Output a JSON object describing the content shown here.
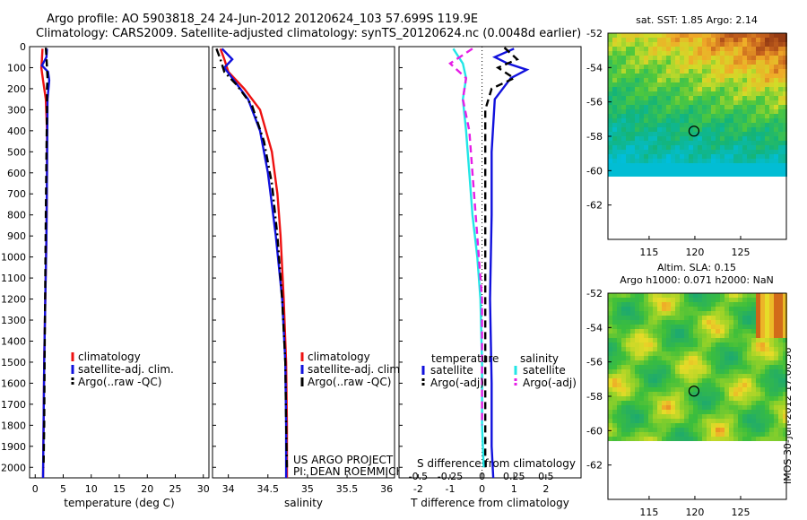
{
  "header": {
    "line1": "Argo profile: AO 5903818_24 24-Jun-2012 20120624_103 57.699S 119.9E",
    "line2": "Climatology: CARS2009. Satellite-adjusted climatology: synTS_20120624.nc (0.0048d earlier)"
  },
  "stamp": "IMOS 30-Jun-2012 17:00:56",
  "colors": {
    "red": "#ee1111",
    "blue": "#1111dd",
    "black": "#000000",
    "cyan": "#22e6e6",
    "magenta": "#e61ee6"
  },
  "chart_data": [
    {
      "type": "line",
      "xlabel": "temperature (deg C)",
      "ylim": [
        2050,
        0
      ],
      "xlim": [
        -1,
        31
      ],
      "xticks": [
        "0",
        "5",
        "10",
        "15",
        "20",
        "25",
        "30"
      ],
      "yticks": [
        "0",
        "100",
        "200",
        "300",
        "400",
        "500",
        "600",
        "700",
        "800",
        "900",
        "1000",
        "1100",
        "1200",
        "1300",
        "1400",
        "1500",
        "1600",
        "1700",
        "1800",
        "1900",
        "2000"
      ],
      "legend": [
        "climatology",
        "satellite-adj. clim.",
        "Argo(..raw -QC)"
      ],
      "series": [
        {
          "name": "climatology",
          "color": "red",
          "dash": "solid",
          "x": [
            1.3,
            1.2,
            1.1,
            1.4,
            1.9,
            2.1,
            2.1,
            2.0,
            1.8,
            1.6,
            1.5,
            1.4
          ],
          "y": [
            10,
            60,
            100,
            160,
            250,
            400,
            600,
            900,
            1200,
            1500,
            1800,
            2050
          ]
        },
        {
          "name": "satellite-adj. clim.",
          "color": "blue",
          "dash": "solid",
          "x": [
            2.1,
            2.0,
            1.2,
            2.3,
            2.5,
            2.2,
            2.1,
            2.0,
            1.8,
            1.6,
            1.5,
            1.4
          ],
          "y": [
            10,
            50,
            90,
            120,
            160,
            250,
            600,
            900,
            1200,
            1500,
            1800,
            2050
          ]
        },
        {
          "name": "Argo(..raw -QC)",
          "color": "black",
          "dash": "dash",
          "x": [
            1.9,
            2.0,
            2.1,
            2.2,
            2.1,
            2.1,
            2.0,
            1.9,
            1.8,
            1.7,
            1.6,
            1.5
          ],
          "y": [
            5,
            50,
            100,
            150,
            200,
            300,
            500,
            800,
            1100,
            1400,
            1800,
            2000
          ]
        }
      ]
    },
    {
      "type": "line",
      "xlabel": "salinity",
      "ylim": [
        2050,
        0
      ],
      "xlim": [
        33.8,
        36.1
      ],
      "xticks": [
        "34",
        "34.5",
        "35",
        "35.5",
        "36"
      ],
      "legend": [
        "climatology",
        "satellite-adj. clim.",
        "Argo(..raw -QC)"
      ],
      "annotation": [
        "US ARGO PROJECT",
        "PI: DEAN ROEMMICH"
      ],
      "series": [
        {
          "name": "climatology",
          "color": "red",
          "dash": "solid",
          "x": [
            33.9,
            33.95,
            34.0,
            34.2,
            34.4,
            34.55,
            34.62,
            34.66,
            34.7,
            34.73,
            34.74,
            34.74
          ],
          "y": [
            10,
            60,
            120,
            200,
            300,
            500,
            700,
            900,
            1200,
            1500,
            1800,
            2050
          ]
        },
        {
          "name": "satellite-adj. clim.",
          "color": "blue",
          "dash": "solid",
          "x": [
            33.92,
            34.05,
            33.95,
            34.05,
            34.25,
            34.4,
            34.5,
            34.6,
            34.68,
            34.72,
            34.73,
            34.73
          ],
          "y": [
            10,
            60,
            100,
            150,
            250,
            400,
            600,
            900,
            1200,
            1500,
            1800,
            2050
          ]
        },
        {
          "name": "Argo(..raw -QC)",
          "color": "black",
          "dash": "dashdot",
          "x": [
            33.85,
            33.9,
            33.95,
            34.1,
            34.3,
            34.45,
            34.55,
            34.62,
            34.68,
            34.72,
            34.73,
            34.74
          ],
          "y": [
            10,
            60,
            120,
            180,
            280,
            450,
            650,
            900,
            1200,
            1500,
            1800,
            2000
          ]
        }
      ]
    },
    {
      "type": "line",
      "xlabel": "T difference from climatology",
      "xlabel_top": "S difference from climatology",
      "ylim": [
        2050,
        0
      ],
      "xlim": [
        -2.6,
        3.1
      ],
      "xticks": [
        "-2",
        "-1",
        "0",
        "1",
        "2"
      ],
      "xticks_top": [
        "-0.5",
        "-0.25",
        "0",
        "0.25",
        "0.5"
      ],
      "legend_titles": [
        "temperature",
        "salinity"
      ],
      "legend": [
        "satellite",
        "Argo(-adj)",
        "satellite",
        "Argo(-adj)"
      ],
      "series": [
        {
          "name": "satellite",
          "group": "temperature",
          "color": "blue",
          "dash": "solid",
          "x": [
            1.0,
            0.4,
            0.8,
            1.4,
            0.9,
            0.4,
            0.3,
            0.3,
            0.25,
            0.3,
            0.3,
            0.35
          ],
          "y": [
            10,
            50,
            80,
            110,
            150,
            250,
            500,
            800,
            1200,
            1600,
            1900,
            2050
          ]
        },
        {
          "name": "Argo(-adj)",
          "group": "temperature",
          "color": "black",
          "dash": "dash",
          "x": [
            0.7,
            1.1,
            0.5,
            1.0,
            0.3,
            0.1,
            0.1,
            0.1,
            0.1,
            0.1,
            0.1,
            0.1
          ],
          "y": [
            5,
            60,
            100,
            150,
            200,
            300,
            500,
            800,
            1100,
            1500,
            1800,
            2000
          ]
        },
        {
          "name": "satellite",
          "group": "salinity",
          "color": "cyan",
          "dash": "solid",
          "x": [
            -0.9,
            -0.6,
            -0.5,
            -0.6,
            -0.5,
            -0.4,
            -0.3,
            -0.15,
            -0.05,
            0.0,
            0.0,
            0.05
          ],
          "y": [
            10,
            80,
            150,
            250,
            400,
            600,
            800,
            1000,
            1200,
            1500,
            1800,
            2000
          ]
        },
        {
          "name": "Argo(-adj)",
          "group": "salinity",
          "color": "magenta",
          "dash": "dash",
          "x": [
            -0.3,
            -1.0,
            -0.5,
            -0.6,
            -0.4,
            -0.3,
            -0.2,
            -0.1,
            0.0,
            0.0,
            0.0
          ],
          "y": [
            10,
            80,
            150,
            250,
            400,
            600,
            800,
            1000,
            1200,
            1500,
            1800
          ]
        }
      ]
    },
    {
      "type": "heatmap",
      "title": "sat. SST: 1.85 Argo: 2.14",
      "xticks": [
        "115",
        "120",
        "125"
      ],
      "yticks": [
        "-52",
        "-54",
        "-56",
        "-58",
        "-60",
        "-62"
      ],
      "xlim": [
        110.5,
        130
      ],
      "ylim": [
        -64,
        -52
      ],
      "marker": {
        "lon": 119.9,
        "lat": -57.7
      }
    },
    {
      "type": "heatmap",
      "title": "Altim. SLA: 0.15",
      "subtitle": "Argo h1000: 0.071 h2000: NaN",
      "xticks": [
        "115",
        "120",
        "125"
      ],
      "yticks": [
        "-52",
        "-54",
        "-56",
        "-58",
        "-60",
        "-62"
      ],
      "xlim": [
        110.5,
        130
      ],
      "ylim": [
        -64,
        -52
      ],
      "marker": {
        "lon": 119.9,
        "lat": -57.7
      }
    }
  ]
}
